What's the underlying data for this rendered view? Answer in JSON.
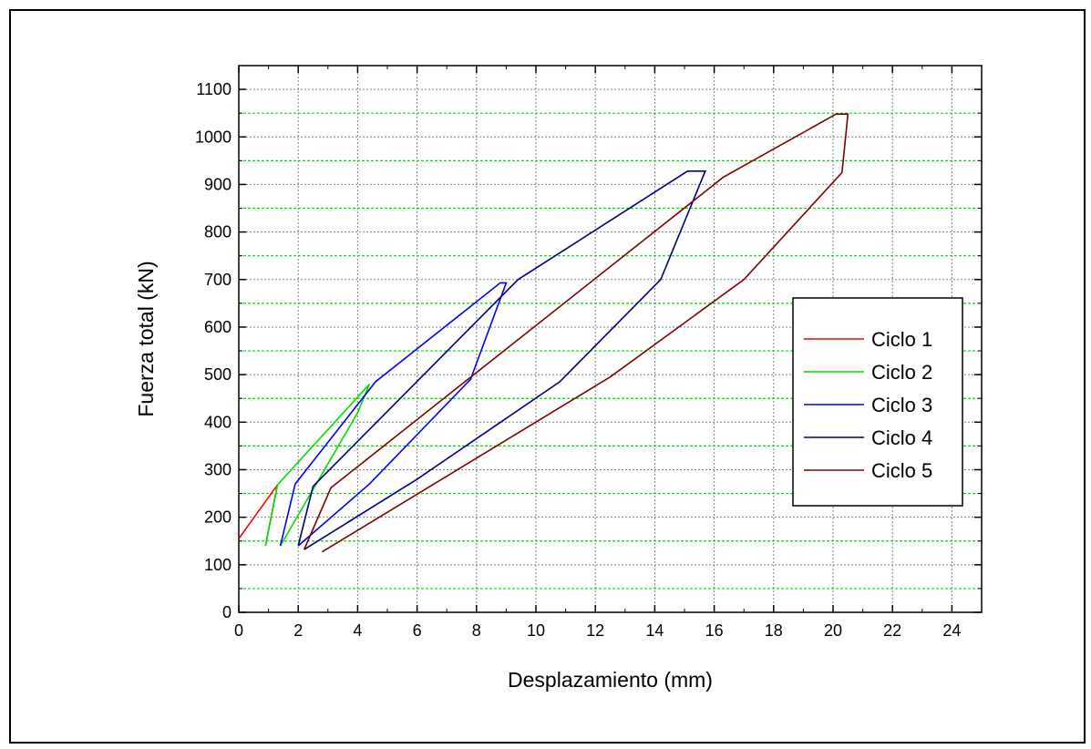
{
  "chart_data": {
    "type": "line",
    "title": "",
    "xlabel": "Desplazamiento (mm)",
    "ylabel": "Fuerza total (kN)",
    "xlim": [
      0,
      25
    ],
    "ylim": [
      0,
      1150
    ],
    "xticks": [
      0,
      2,
      4,
      6,
      8,
      10,
      12,
      14,
      16,
      18,
      20,
      22,
      24
    ],
    "yticks": [
      0,
      100,
      200,
      300,
      400,
      500,
      600,
      700,
      800,
      900,
      1000,
      1100
    ],
    "grid": true,
    "minor_gridlines": [
      50,
      150,
      250,
      350,
      450,
      550,
      650,
      750,
      850,
      950,
      1050
    ],
    "legend_position": "right",
    "colors": {
      "minor_grid": "#00dd00",
      "major_grid": "#808080"
    },
    "series": [
      {
        "name": "Ciclo 1",
        "color": "#ff0000",
        "x": [
          0.0,
          1.3,
          0.9
        ],
        "y": [
          155,
          268,
          140
        ]
      },
      {
        "name": "Ciclo 2",
        "color": "#00dd00",
        "x": [
          0.9,
          1.3,
          4.4,
          4.0,
          1.4
        ],
        "y": [
          140,
          268,
          480,
          420,
          140
        ]
      },
      {
        "name": "Ciclo 3",
        "color": "#0000ff",
        "x": [
          1.4,
          1.9,
          4.6,
          8.8,
          9.0,
          7.8,
          4.4,
          2.0
        ],
        "y": [
          140,
          270,
          485,
          693,
          693,
          490,
          270,
          140
        ]
      },
      {
        "name": "Ciclo 4",
        "color": "#000080",
        "x": [
          2.0,
          2.5,
          9.4,
          15.1,
          15.7,
          14.2,
          10.8,
          6.0,
          2.2
        ],
        "y": [
          140,
          265,
          700,
          928,
          928,
          700,
          485,
          280,
          132
        ]
      },
      {
        "name": "Ciclo 5",
        "color": "#800000",
        "x": [
          2.2,
          3.1,
          16.3,
          20.1,
          20.5,
          20.3,
          17.0,
          12.5,
          2.8
        ],
        "y": [
          132,
          262,
          915,
          1048,
          1048,
          925,
          700,
          495,
          127
        ]
      }
    ]
  }
}
